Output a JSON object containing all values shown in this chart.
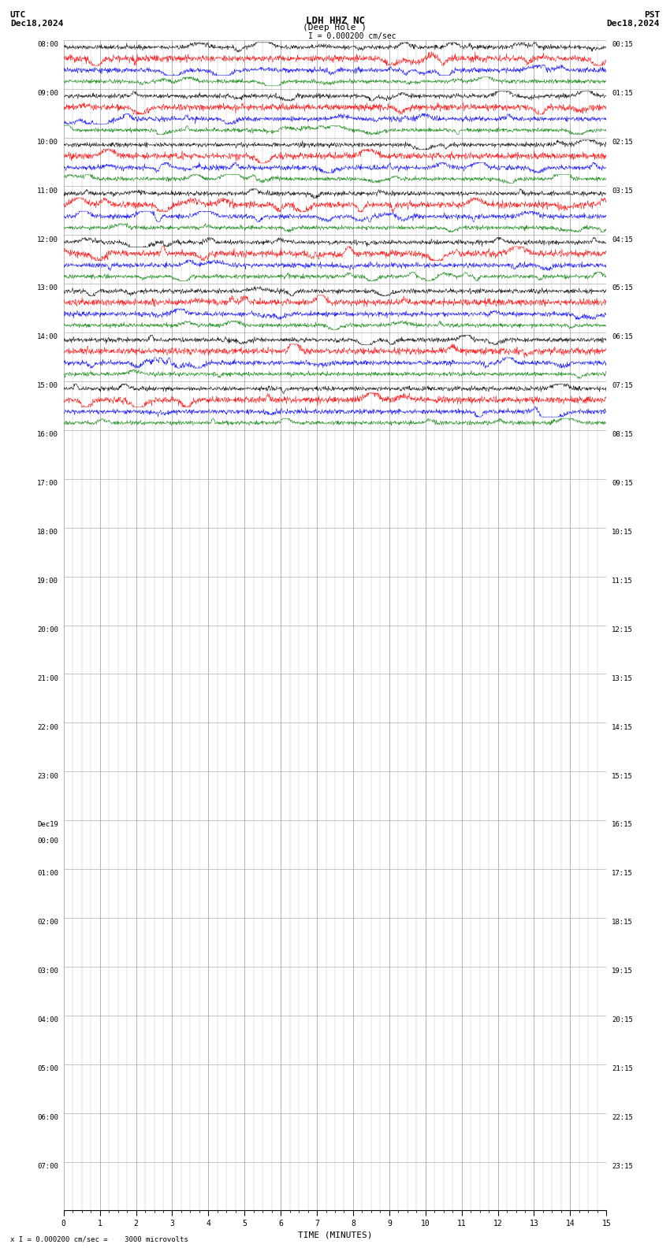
{
  "title_line1": "LDH HHZ NC",
  "title_line2": "(Deep Hole )",
  "scale_label": "I = 0.000200 cm/sec",
  "utc_label": "UTC",
  "pst_label": "PST",
  "date_left": "Dec18,2024",
  "date_right": "Dec18,2024",
  "xlabel": "TIME (MINUTES)",
  "bottom_note": "x I = 0.000200 cm/sec =    3000 microvolts",
  "left_times": [
    "08:00",
    "09:00",
    "10:00",
    "11:00",
    "12:00",
    "13:00",
    "14:00",
    "15:00",
    "16:00",
    "17:00",
    "18:00",
    "19:00",
    "20:00",
    "21:00",
    "22:00",
    "23:00",
    "Dec19\n00:00",
    "01:00",
    "02:00",
    "03:00",
    "04:00",
    "05:00",
    "06:00",
    "07:00"
  ],
  "right_times": [
    "00:15",
    "01:15",
    "02:15",
    "03:15",
    "04:15",
    "05:15",
    "06:15",
    "07:15",
    "08:15",
    "09:15",
    "10:15",
    "11:15",
    "12:15",
    "13:15",
    "14:15",
    "15:15",
    "16:15",
    "17:15",
    "18:15",
    "19:15",
    "20:15",
    "21:15",
    "22:15",
    "23:15"
  ],
  "active_rows": 8,
  "total_rows": 24,
  "xmin": 0,
  "xmax": 15,
  "xticks": [
    0,
    1,
    2,
    3,
    4,
    5,
    6,
    7,
    8,
    9,
    10,
    11,
    12,
    13,
    14,
    15
  ],
  "colors": [
    "black",
    "red",
    "blue",
    "green"
  ],
  "bg_color": "white",
  "grid_color": "#999999",
  "fig_width": 8.5,
  "fig_height": 15.84,
  "font_size_title": 9,
  "font_size_labels": 7,
  "font_size_ticks": 7,
  "font_size_row": 7
}
